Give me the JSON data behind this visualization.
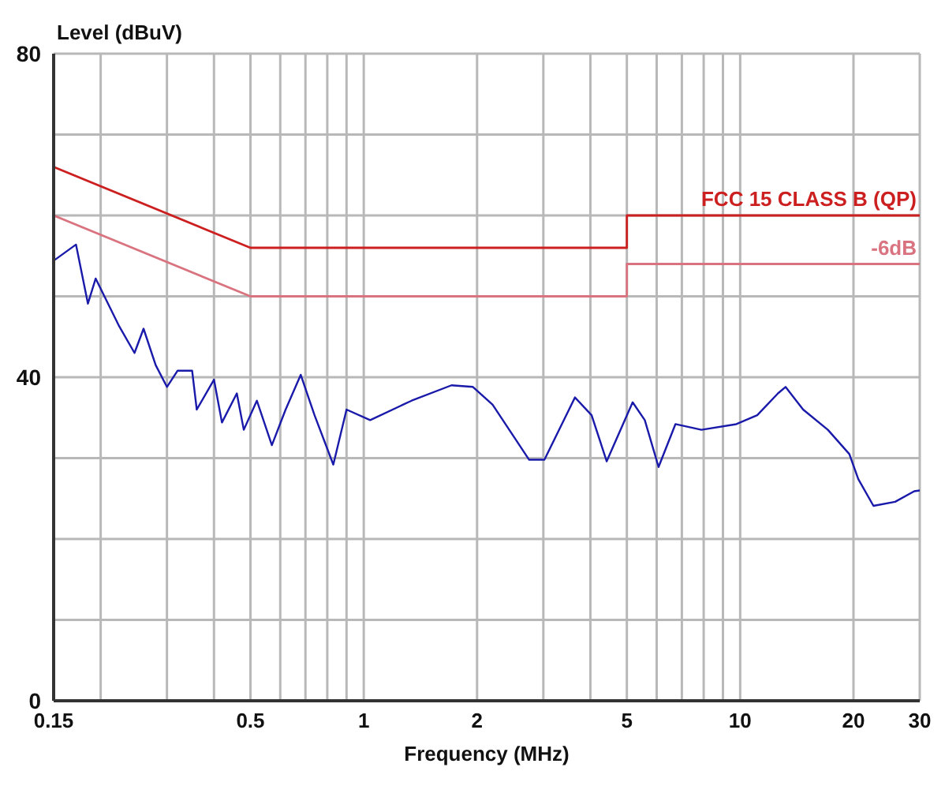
{
  "chart_data": {
    "type": "line",
    "xlabel": "Frequency (MHz)",
    "ylabel": "Level (dBuV)",
    "log": "x",
    "grid": true,
    "marker": "none",
    "line_style": "solid",
    "xlim": [
      0.15,
      30
    ],
    "ylim": [
      0,
      80
    ],
    "xticks": [
      0.15,
      {
        "value": 0.2,
        "label": null
      },
      {
        "value": 0.3,
        "label": null
      },
      {
        "value": 0.4,
        "label": null
      },
      0.5,
      {
        "value": 0.6,
        "label": null
      },
      {
        "value": 0.7,
        "label": null
      },
      {
        "value": 0.8,
        "label": null
      },
      {
        "value": 0.9,
        "label": null
      },
      1,
      2,
      {
        "value": 3,
        "label": null
      },
      {
        "value": 4,
        "label": null
      },
      5,
      {
        "value": 6,
        "label": null
      },
      {
        "value": 7,
        "label": null
      },
      {
        "value": 8,
        "label": null
      },
      {
        "value": 9,
        "label": null
      },
      10,
      20,
      30
    ],
    "yticks": [
      0,
      {
        "value": 10,
        "label": null
      },
      {
        "value": 20,
        "label": null
      },
      {
        "value": 30,
        "label": null
      },
      40,
      {
        "value": 50,
        "label": null
      },
      {
        "value": 60,
        "label": null
      },
      {
        "value": 70,
        "label": null
      },
      80
    ],
    "series": [
      {
        "name": "FCC 15 CLASS B (QP)",
        "color": "#cc1f1f",
        "x": [
          0.15,
          0.5,
          5,
          5,
          30
        ],
        "values": [
          66,
          56,
          56,
          60,
          60
        ]
      },
      {
        "name": "-6dB",
        "color": "#d9737f",
        "x": [
          0.15,
          0.5,
          5,
          5,
          30
        ],
        "values": [
          60,
          50,
          50,
          54,
          54
        ]
      },
      {
        "color": "#1a1aaa",
        "x": [
          0.15,
          0.172,
          0.185,
          0.194,
          0.224,
          0.246,
          0.26,
          0.28,
          0.3,
          0.32,
          0.35,
          0.36,
          0.4,
          0.42,
          0.46,
          0.48,
          0.52,
          0.57,
          0.62,
          0.68,
          0.74,
          0.83,
          0.9,
          1.04,
          1.34,
          1.71,
          1.95,
          2.2,
          2.75,
          3.02,
          3.64,
          4.03,
          4.42,
          5.18,
          5.58,
          6.07,
          6.73,
          7.89,
          9.77,
          11.1,
          12.6,
          13.2,
          14.7,
          17.1,
          19.5,
          20.6,
          22.6,
          25.8,
          29,
          30
        ],
        "values": [
          54.4,
          56.4,
          49.1,
          52.2,
          46.3,
          43,
          46,
          41.5,
          38.8,
          40.8,
          40.8,
          36,
          39.7,
          34.4,
          38,
          33.5,
          37.1,
          31.6,
          36,
          40.3,
          35.3,
          29.2,
          36,
          34.7,
          37.1,
          39,
          38.8,
          36.6,
          29.8,
          29.8,
          37.5,
          35.3,
          29.6,
          36.9,
          34.7,
          28.9,
          34.2,
          33.5,
          34.2,
          35.3,
          38,
          38.8,
          36,
          33.5,
          30.5,
          27.4,
          24.1,
          24.6,
          25.9,
          26
        ]
      }
    ]
  }
}
